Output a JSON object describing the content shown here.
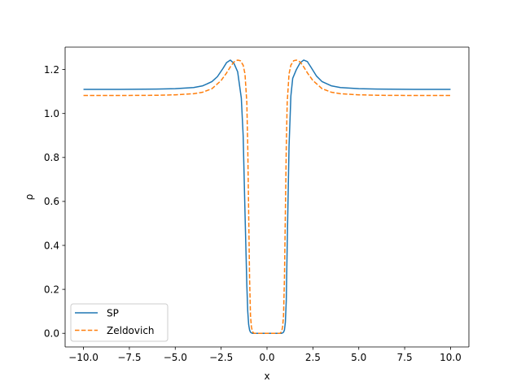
{
  "chart_data": {
    "type": "line",
    "title": "",
    "xlabel": "x",
    "ylabel": "ρ",
    "xlim": [
      -11.0,
      11.0
    ],
    "ylim": [
      -0.062,
      1.302
    ],
    "xticks": [
      -10.0,
      -7.5,
      -5.0,
      -2.5,
      0.0,
      2.5,
      5.0,
      7.5,
      10.0
    ],
    "xtick_labels": [
      "−10.0",
      "−7.5",
      "−5.0",
      "−2.5",
      "0.0",
      "2.5",
      "5.0",
      "7.5",
      "10.0"
    ],
    "yticks": [
      0.0,
      0.2,
      0.4,
      0.6,
      0.8,
      1.0,
      1.2
    ],
    "ytick_labels": [
      "0.0",
      "0.2",
      "0.4",
      "0.6",
      "0.8",
      "1.0",
      "1.2"
    ],
    "grid": false,
    "legend": "lower-left",
    "series": [
      {
        "name": "SP",
        "color": "#1f77b4",
        "dash": "solid",
        "x": [
          -10.0,
          -8.0,
          -6.0,
          -5.0,
          -4.0,
          -3.5,
          -3.0,
          -2.7,
          -2.4,
          -2.2,
          -2.0,
          -1.8,
          -1.6,
          -1.4,
          -1.3,
          -1.2,
          -1.1,
          -1.05,
          -1.0,
          -0.95,
          -0.9,
          -0.85,
          -0.8,
          0.0,
          0.8,
          0.85,
          0.9,
          0.95,
          1.0,
          1.05,
          1.1,
          1.2,
          1.3,
          1.4,
          1.6,
          1.8,
          2.0,
          2.2,
          2.4,
          2.7,
          3.0,
          3.5,
          4.0,
          5.0,
          6.0,
          8.0,
          10.0
        ],
        "y": [
          1.11,
          1.11,
          1.111,
          1.113,
          1.118,
          1.126,
          1.145,
          1.168,
          1.205,
          1.232,
          1.243,
          1.228,
          1.19,
          1.07,
          0.9,
          0.55,
          0.22,
          0.1,
          0.04,
          0.015,
          0.005,
          0.002,
          0.0,
          0.0,
          0.0,
          0.002,
          0.005,
          0.015,
          0.05,
          0.15,
          0.4,
          0.85,
          1.08,
          1.16,
          1.2,
          1.23,
          1.243,
          1.236,
          1.21,
          1.17,
          1.145,
          1.126,
          1.118,
          1.113,
          1.111,
          1.11,
          1.11
        ]
      },
      {
        "name": "Zeldovich",
        "color": "#ff7f0e",
        "dash": "dashed",
        "x": [
          -10.0,
          -8.0,
          -6.0,
          -5.0,
          -4.0,
          -3.5,
          -3.0,
          -2.5,
          -2.2,
          -2.0,
          -1.8,
          -1.6,
          -1.45,
          -1.3,
          -1.2,
          -1.1,
          -1.05,
          -1.0,
          -0.95,
          -0.9,
          -0.85,
          -0.8,
          -0.75,
          -0.7,
          0.0,
          0.7,
          0.75,
          0.8,
          0.85,
          0.9,
          0.95,
          1.0,
          1.05,
          1.1,
          1.2,
          1.3,
          1.45,
          1.6,
          1.8,
          2.0,
          2.2,
          2.5,
          3.0,
          3.5,
          4.0,
          5.0,
          6.0,
          8.0,
          10.0
        ],
        "y": [
          1.082,
          1.082,
          1.083,
          1.085,
          1.09,
          1.097,
          1.113,
          1.15,
          1.185,
          1.212,
          1.235,
          1.243,
          1.24,
          1.22,
          1.18,
          1.05,
          0.85,
          0.55,
          0.25,
          0.08,
          0.03,
          0.01,
          0.003,
          0.0,
          0.0,
          0.0,
          0.003,
          0.01,
          0.03,
          0.08,
          0.25,
          0.55,
          0.85,
          1.05,
          1.18,
          1.22,
          1.24,
          1.243,
          1.235,
          1.212,
          1.185,
          1.15,
          1.113,
          1.097,
          1.09,
          1.085,
          1.083,
          1.082,
          1.082
        ]
      }
    ]
  }
}
